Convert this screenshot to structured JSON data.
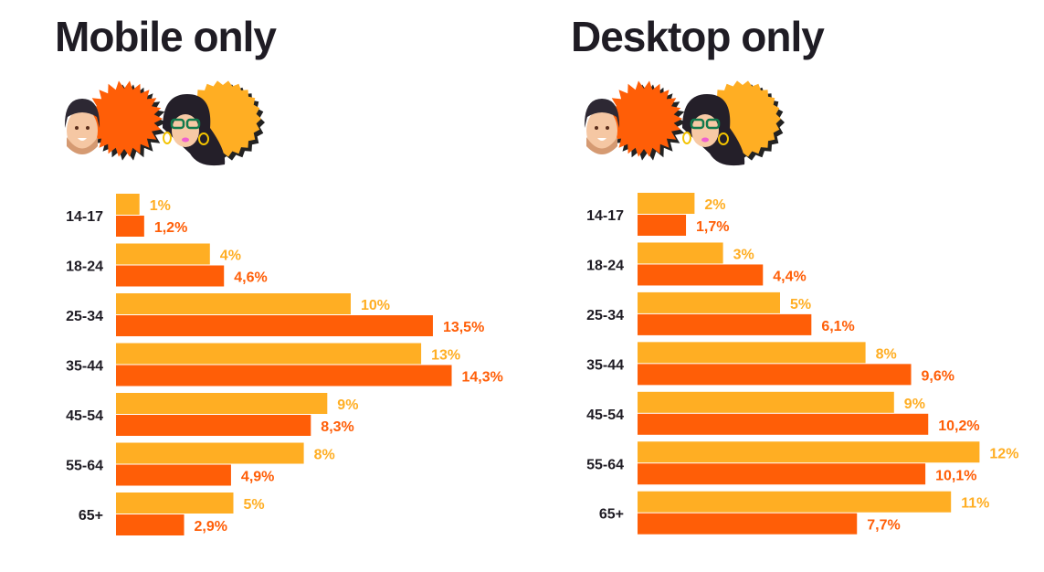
{
  "colors": {
    "female": "#FFAE23",
    "male": "#FF5E07",
    "text": "#1f1c24"
  },
  "chart_data": [
    {
      "type": "bar",
      "orientation": "horizontal",
      "title": "Mobile only",
      "categories": [
        "14-17",
        "18-24",
        "25-34",
        "35-44",
        "45-54",
        "55-64",
        "65+"
      ],
      "series": [
        {
          "name": "female",
          "labels": [
            "1%",
            "4%",
            "10%",
            "13%",
            "9%",
            "8%",
            "5%"
          ],
          "values": [
            1,
            4,
            10,
            13,
            9,
            8,
            5
          ]
        },
        {
          "name": "male",
          "labels": [
            "1,2%",
            "4,6%",
            "13,5%",
            "14,3%",
            "8,3%",
            "4,9%",
            "2,9%"
          ],
          "values": [
            1.2,
            4.6,
            13.5,
            14.3,
            8.3,
            4.9,
            2.9
          ]
        }
      ],
      "unit": "%"
    },
    {
      "type": "bar",
      "orientation": "horizontal",
      "title": "Desktop only",
      "categories": [
        "14-17",
        "18-24",
        "25-34",
        "35-44",
        "45-54",
        "55-64",
        "65+"
      ],
      "series": [
        {
          "name": "female",
          "labels": [
            "2%",
            "3%",
            "5%",
            "8%",
            "9%",
            "12%",
            "11%"
          ],
          "values": [
            2,
            3,
            5,
            8,
            9,
            12,
            11
          ]
        },
        {
          "name": "male",
          "labels": [
            "1,7%",
            "4,4%",
            "6,1%",
            "9,6%",
            "10,2%",
            "10,1%",
            "7,7%"
          ],
          "values": [
            1.7,
            4.4,
            6.1,
            9.6,
            10.2,
            10.1,
            7.7
          ]
        }
      ],
      "unit": "%"
    }
  ]
}
